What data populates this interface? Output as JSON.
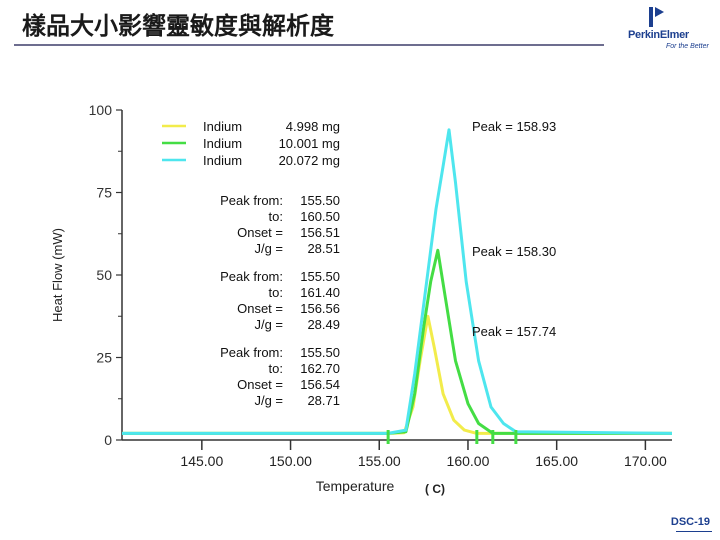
{
  "page": {
    "title": "樣品大小影響靈敏度與解析度",
    "footer": "DSC-19"
  },
  "logo": {
    "name": "PerkinElmer",
    "tagline": "For the Better",
    "brand_color": "#1c3f8f"
  },
  "chart_data": {
    "type": "line",
    "xlabel": "Temperature",
    "xunit": "( C)",
    "ylabel": "Heat Flow (mW)",
    "xlim": [
      140.5,
      171.5
    ],
    "ylim": [
      0,
      100
    ],
    "x_ticks": [
      "145.00",
      "150.00",
      "155.00",
      "160.00",
      "165.00",
      "170.00"
    ],
    "y_ticks": [
      "0",
      "25",
      "50",
      "75",
      "100"
    ],
    "legend": {
      "placement": "top-left",
      "entries": [
        {
          "name": "Indium",
          "mass": "4.998 mg",
          "color": "#f2ec4b"
        },
        {
          "name": "Indium",
          "mass": "10.001 mg",
          "color": "#44dd44"
        },
        {
          "name": "Indium",
          "mass": "20.072 mg",
          "color": "#4ee6ee"
        }
      ]
    },
    "results": [
      {
        "rows": [
          [
            "Peak from:",
            "155.50"
          ],
          [
            "to:",
            "160.50"
          ],
          [
            "Onset =",
            "156.51"
          ],
          [
            "J/g =",
            "28.51"
          ]
        ]
      },
      {
        "rows": [
          [
            "Peak from:",
            "155.50"
          ],
          [
            "to:",
            "161.40"
          ],
          [
            "Onset =",
            "156.56"
          ],
          [
            "J/g =",
            "28.49"
          ]
        ]
      },
      {
        "rows": [
          [
            "Peak from:",
            "155.50"
          ],
          [
            "to:",
            "162.70"
          ],
          [
            "Onset =",
            "156.54"
          ],
          [
            "J/g =",
            "28.71"
          ]
        ]
      }
    ],
    "peak_labels": [
      "Peak = 158.93",
      "Peak = 158.30",
      "Peak = 157.74"
    ],
    "series": [
      {
        "name": "Indium 4.998 mg",
        "color": "#f2ec4b",
        "x": [
          140.5,
          155.5,
          156.4,
          156.9,
          157.3,
          157.74,
          158.1,
          158.6,
          159.2,
          159.8,
          160.5,
          171.5
        ],
        "y": [
          2,
          2,
          2.2,
          10,
          24,
          37.5,
          28,
          14,
          6,
          3,
          2,
          2
        ]
      },
      {
        "name": "Indium 10.001 mg",
        "color": "#44dd44",
        "x": [
          140.5,
          155.5,
          156.5,
          157.0,
          157.5,
          157.9,
          158.3,
          158.7,
          159.3,
          160.0,
          160.6,
          161.4,
          171.5
        ],
        "y": [
          2,
          2,
          2.5,
          14,
          34,
          48,
          57.5,
          44,
          24,
          11,
          5,
          2,
          2
        ]
      },
      {
        "name": "Indium 20.072 mg",
        "color": "#4ee6ee",
        "x": [
          140.5,
          155.5,
          156.5,
          157.0,
          157.6,
          158.2,
          158.6,
          158.93,
          159.3,
          159.9,
          160.6,
          161.3,
          162.0,
          162.7,
          171.5
        ],
        "y": [
          2,
          2,
          3,
          20,
          45,
          70,
          83,
          94,
          78,
          48,
          24,
          10,
          5,
          2.5,
          2
        ]
      }
    ],
    "markers": [
      {
        "x": 155.5,
        "color": "#44dd44"
      },
      {
        "x": 160.5,
        "color": "#44dd44"
      },
      {
        "x": 161.4,
        "color": "#44dd44"
      },
      {
        "x": 162.7,
        "color": "#44dd44"
      }
    ]
  }
}
